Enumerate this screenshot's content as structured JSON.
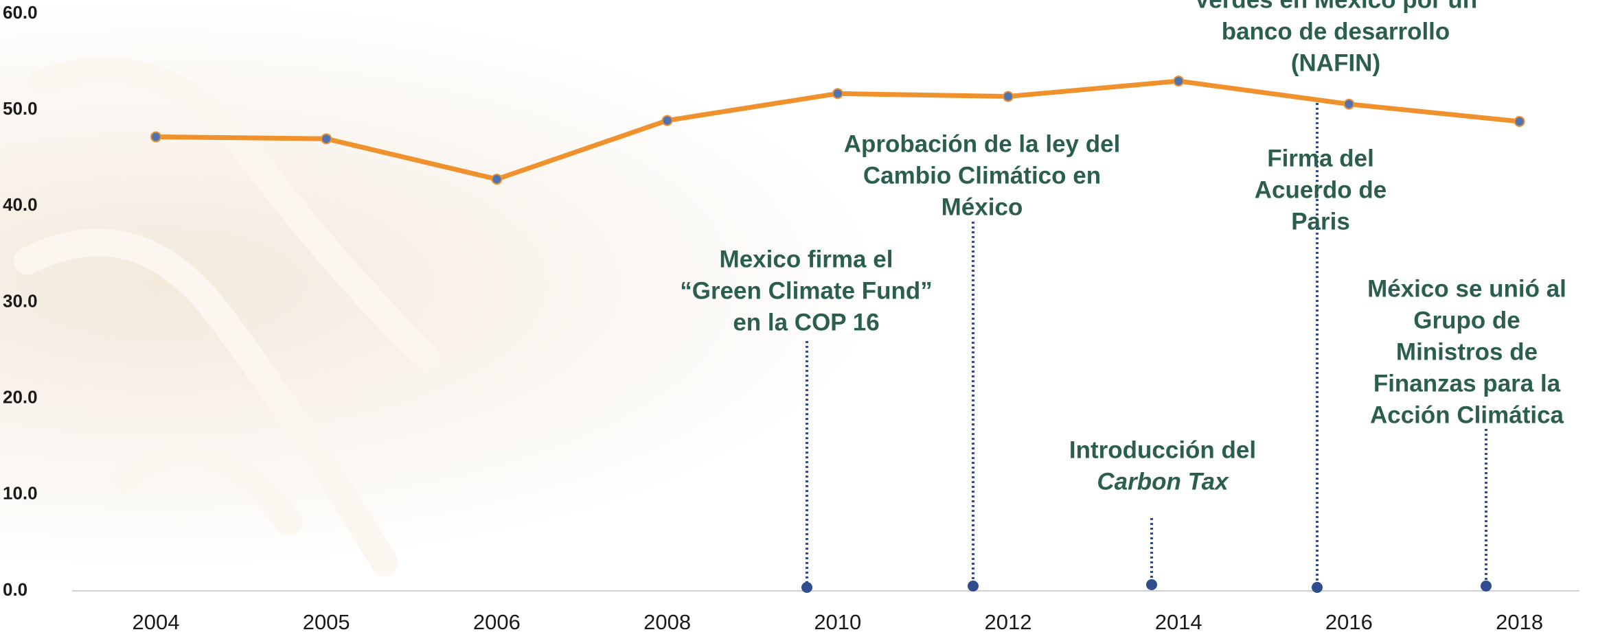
{
  "chart_data": {
    "type": "line",
    "categories": [
      "2004",
      "2005",
      "2006",
      "2008",
      "2010",
      "2012",
      "2014",
      "2016",
      "2018"
    ],
    "series": [
      {
        "color": "#ef922e",
        "values": [
          47.2,
          47.0,
          42.8,
          48.9,
          51.7,
          51.4,
          53.0,
          50.6,
          48.8
        ]
      }
    ],
    "ylim": [
      0,
      60
    ],
    "yticks": [
      {
        "value": 0,
        "label": "0.0"
      },
      {
        "value": 10,
        "label": "10.0"
      },
      {
        "value": 20,
        "label": "20.0"
      },
      {
        "value": 30,
        "label": "30.0"
      },
      {
        "value": 40,
        "label": "40.0"
      },
      {
        "value": 50,
        "label": "50.0"
      },
      {
        "value": 60,
        "label": "60.0"
      }
    ],
    "annotations": [
      [
        "Verdes en México por un",
        "banco de desarrollo",
        "(NAFIN)"
      ],
      [
        "Aprobación de la ley del",
        "Cambio Climático en",
        "México"
      ],
      [
        "Firma del",
        "Acuerdo de",
        "Paris"
      ],
      [
        "Mexico firma el",
        "“Green Climate Fund”",
        "en la COP 16"
      ],
      [
        "México se unió al",
        "Grupo de",
        "Ministros de",
        "Finanzas para la",
        "Acción Climática"
      ],
      [
        "Introducción del",
        "Carbon Tax"
      ]
    ]
  }
}
